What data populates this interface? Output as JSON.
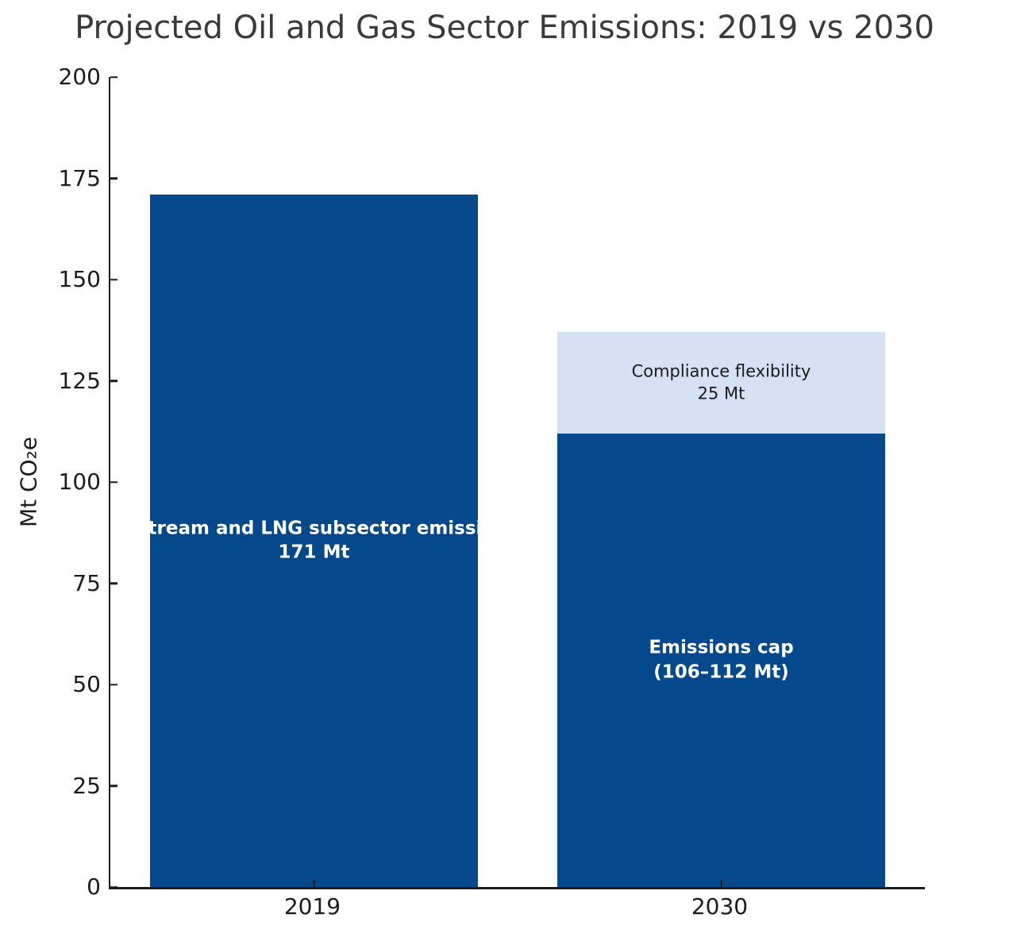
{
  "chart_data": {
    "type": "bar",
    "title": "Projected Oil and Gas Sector Emissions: 2019 vs 2030",
    "ylabel": "Mt CO₂e",
    "xlabel": "",
    "ylim": [
      0,
      200
    ],
    "yticks": [
      0,
      25,
      50,
      75,
      100,
      125,
      150,
      175,
      200
    ],
    "categories": [
      "2019",
      "2030"
    ],
    "legend": null,
    "grid": false,
    "colors": {
      "dark_blue": "#04498c",
      "light_blue": "#d5e2f5",
      "axis": "#1c1c1c",
      "title": "#3a3a3a",
      "background": "#ffffff"
    },
    "bars": [
      {
        "category": "2019",
        "total": 171,
        "segments": [
          {
            "name": "upstream-lng-emissions-2019",
            "value": 171,
            "color": "#04498c",
            "label_lines": [
              "Upstream and LNG subsector emissions",
              "171 Mt"
            ],
            "label_color": "#ffffff",
            "label_bold": true
          }
        ]
      },
      {
        "category": "2030",
        "total": 137,
        "segments": [
          {
            "name": "emissions-cap-2030",
            "value": 112,
            "color": "#04498c",
            "label_lines": [
              "Emissions cap",
              "(106–112 Mt)"
            ],
            "label_color": "#ffffff",
            "label_bold": true
          },
          {
            "name": "compliance-flexibility-2030",
            "value": 25,
            "color": "#d5e2f5",
            "label_lines": [
              "Compliance flexibility",
              "25 Mt"
            ],
            "label_color": "#1a1a1a",
            "label_bold": false
          }
        ]
      }
    ]
  }
}
